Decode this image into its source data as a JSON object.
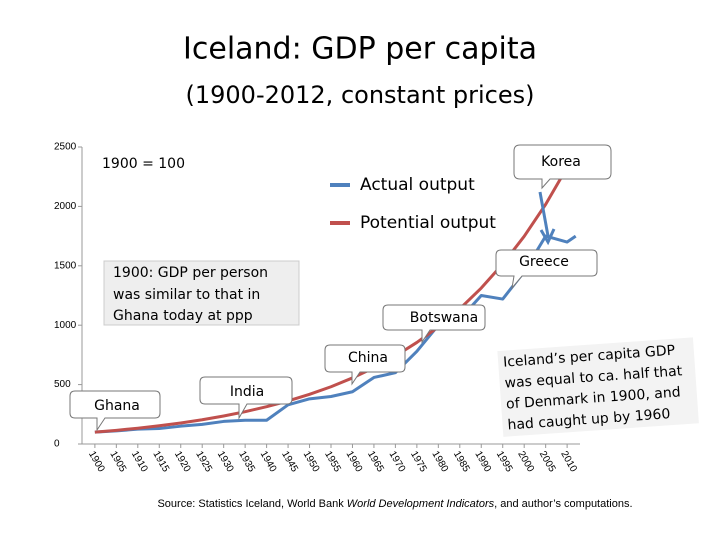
{
  "chart_data": {
    "type": "line",
    "title": "Iceland: GDP per capita",
    "subtitle": "(1900-2012, constant prices)",
    "x": [
      1900,
      1905,
      1910,
      1915,
      1920,
      1925,
      1930,
      1935,
      1940,
      1945,
      1950,
      1955,
      1960,
      1965,
      1970,
      1975,
      1980,
      1985,
      1990,
      1995,
      2000,
      2005,
      2010,
      2012
    ],
    "series": [
      {
        "name": "Actual output",
        "color": "#4f81bd",
        "values": [
          100,
          110,
          125,
          130,
          150,
          165,
          190,
          200,
          200,
          330,
          380,
          400,
          440,
          560,
          600,
          780,
          1000,
          1050,
          1250,
          1220,
          1450,
          1750,
          1700,
          1750
        ]
      },
      {
        "name": "Potential output",
        "color": "#c0504d",
        "values": [
          100,
          115,
          133,
          154,
          177,
          204,
          236,
          272,
          314,
          362,
          418,
          482,
          556,
          642,
          741,
          855,
          986,
          1138,
          1313,
          1515,
          1748,
          2017,
          2328,
          2464
        ]
      }
    ],
    "xlim": [
      1897,
      2013
    ],
    "xticks": [
      1900,
      1905,
      1910,
      1915,
      1920,
      1925,
      1930,
      1935,
      1940,
      1945,
      1950,
      1955,
      1960,
      1965,
      1970,
      1975,
      1980,
      1985,
      1990,
      1995,
      2000,
      2005,
      2010
    ],
    "ylim": [
      0,
      2500
    ],
    "yticks": [
      0,
      500,
      1000,
      1500,
      2000,
      2500
    ],
    "grid": false,
    "base_note": "1900 = 100",
    "callouts": [
      "Korea",
      "Greece",
      "Botswana",
      "China",
      "India",
      "Ghana"
    ],
    "ghana_note": [
      "1900: GDP per person",
      "was similar to that in",
      "Ghana today at ppp"
    ],
    "denmark_note": [
      "Iceland’s per capita GDP",
      "was equal to ca. half that",
      "of Denmark in 1900, and",
      "had caught up by 1960"
    ],
    "source": {
      "prefix": "Source: Statistics Iceland, World Bank ",
      "italic": "World Development Indicators",
      "suffix": ", and author’s computations."
    }
  }
}
